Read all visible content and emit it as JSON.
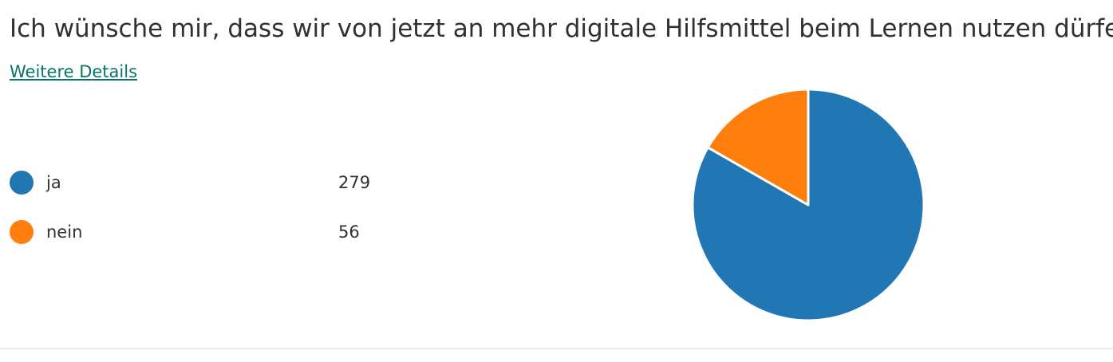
{
  "question": {
    "title": "Ich wünsche mir, dass wir von jetzt an mehr digitale Hilfsmittel beim Lernen nutzen dürfen.",
    "details_link": "Weitere Details"
  },
  "legend": [
    {
      "label": "ja",
      "count": "279",
      "color": "#2077b4"
    },
    {
      "label": "nein",
      "count": "56",
      "color": "#fe7f0e"
    }
  ],
  "chart_data": {
    "type": "pie",
    "categories": [
      "ja",
      "nein"
    ],
    "values": [
      279,
      56
    ],
    "colors": [
      "#2077b4",
      "#fe7f0e"
    ],
    "start_angle": "12 o'clock, clockwise",
    "legend_position": "left"
  }
}
